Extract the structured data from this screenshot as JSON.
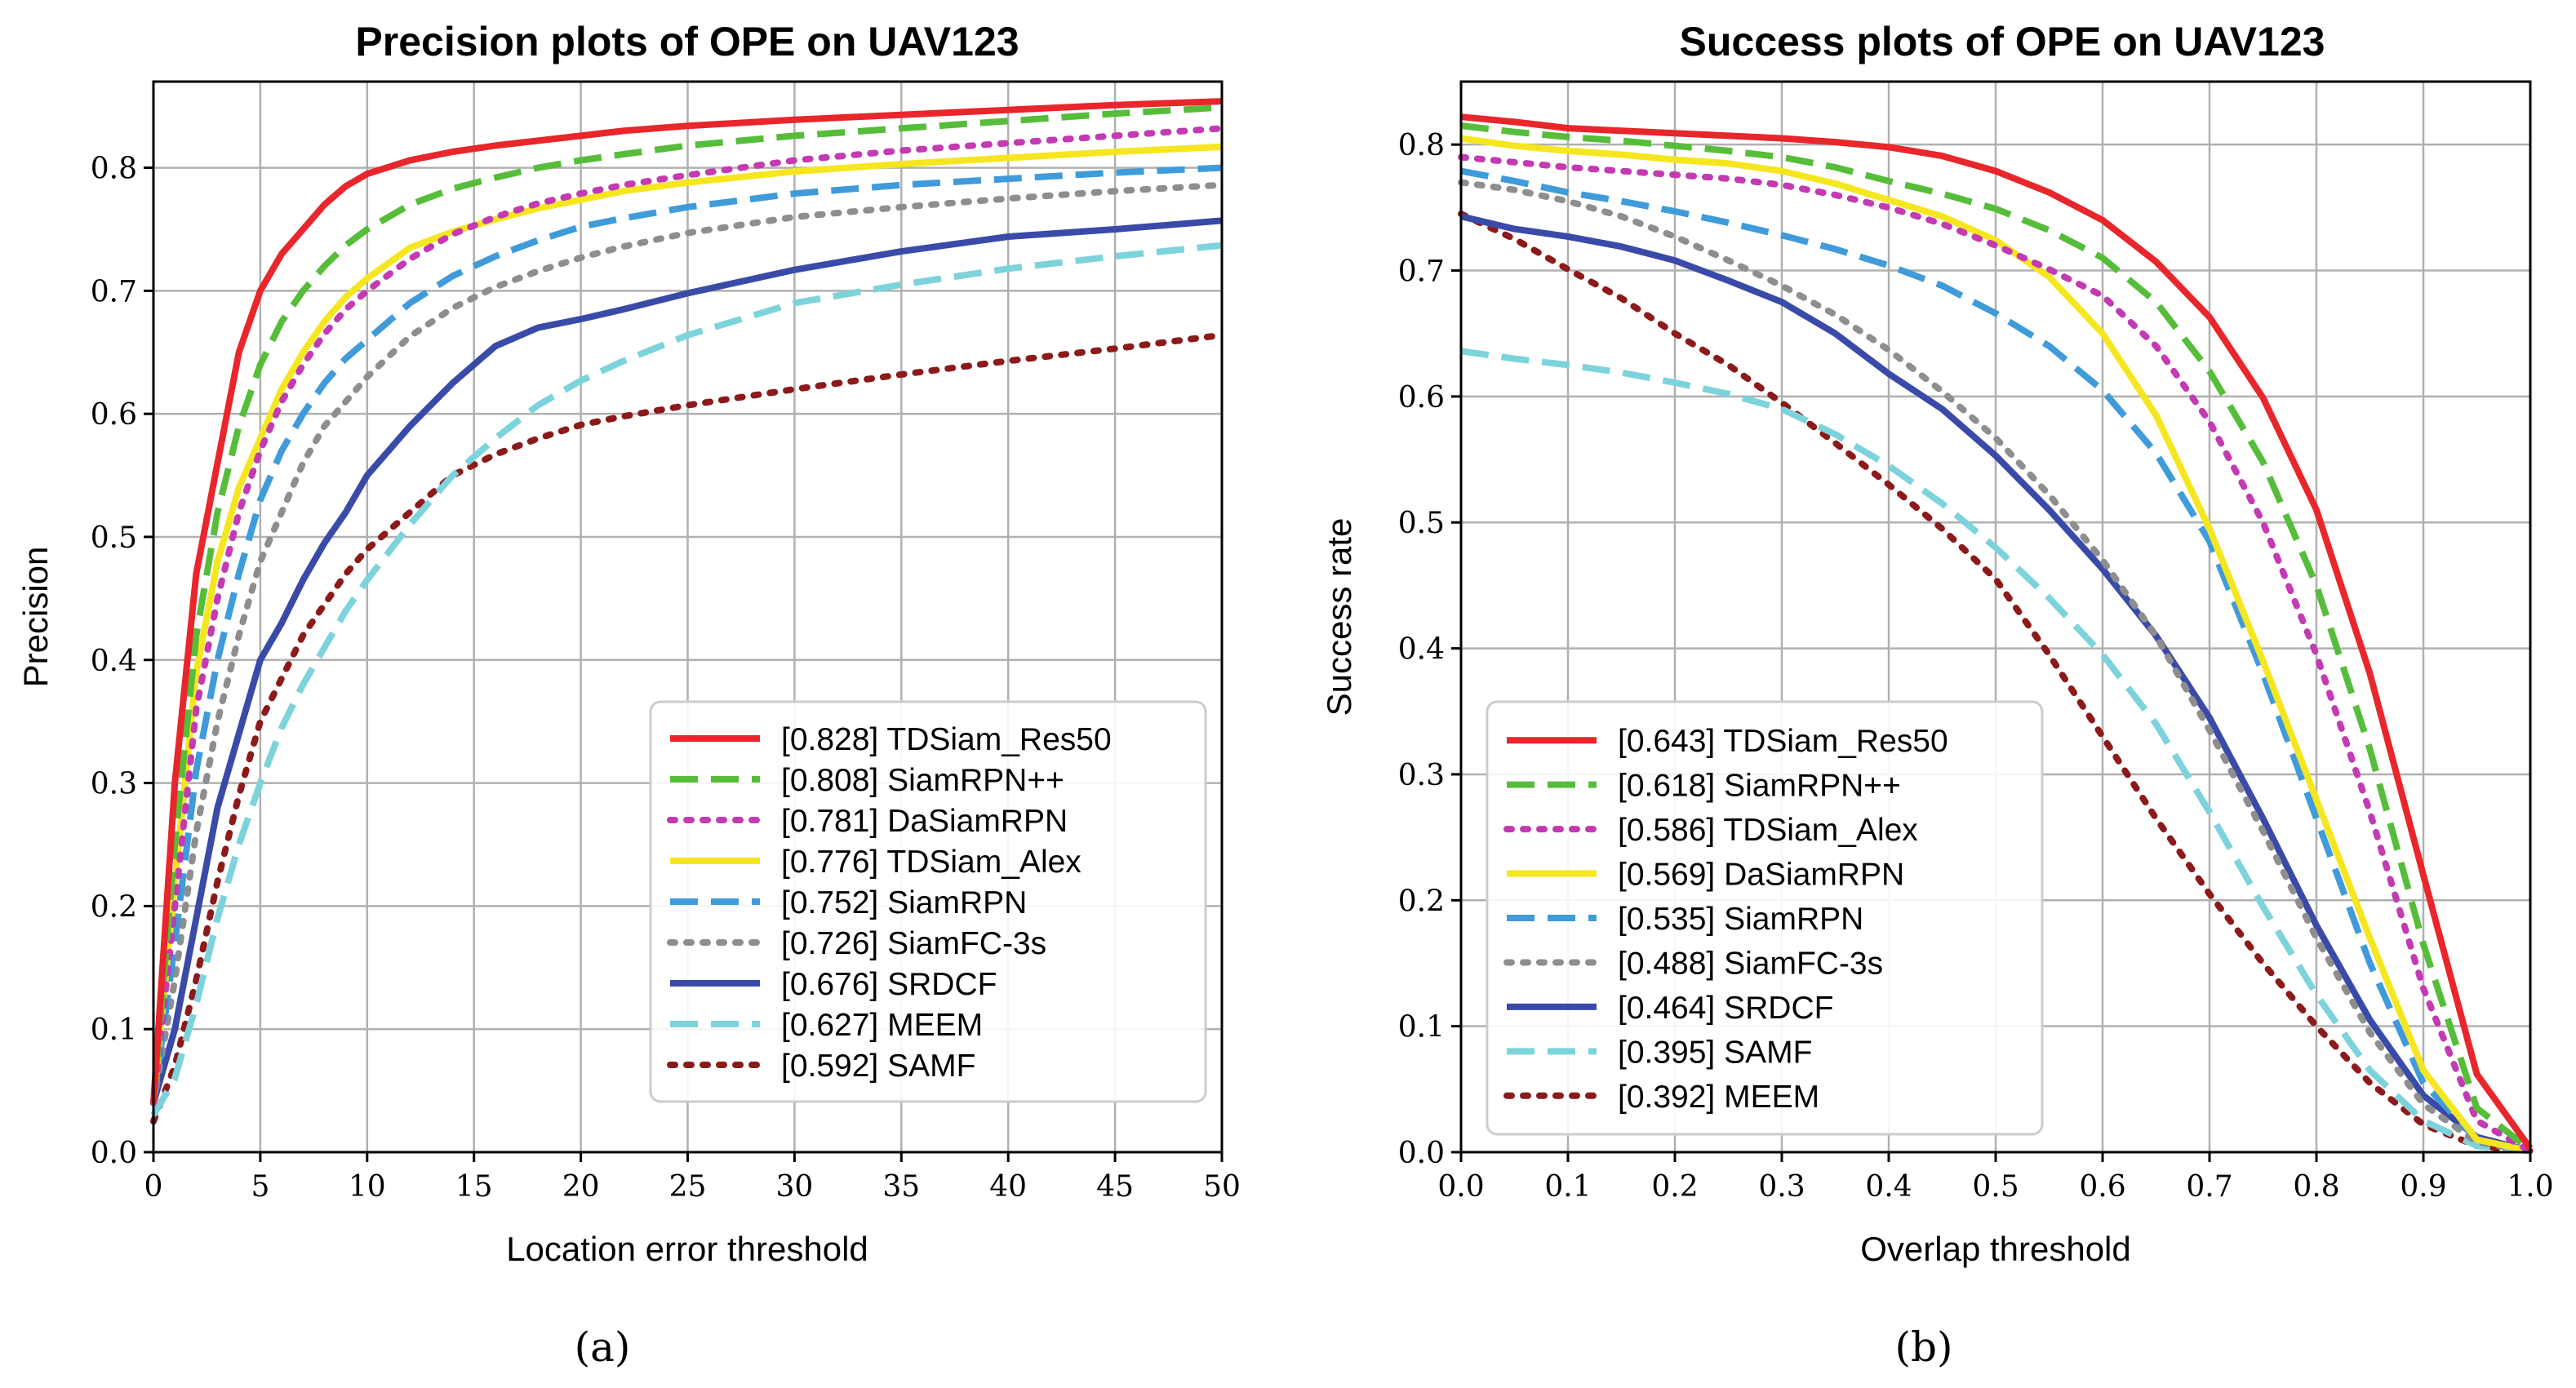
{
  "chart_data": [
    {
      "type": "line",
      "title": "Precision plots of OPE on UAV123",
      "xlabel": "Location error threshold",
      "ylabel": "Precision",
      "xlim": [
        0,
        50
      ],
      "ylim": [
        0,
        0.87
      ],
      "xticks": [
        0,
        5,
        10,
        15,
        20,
        25,
        30,
        35,
        40,
        45,
        50
      ],
      "yticks": [
        0.0,
        0.1,
        0.2,
        0.3,
        0.4,
        0.5,
        0.6,
        0.7,
        0.8
      ],
      "grid": true,
      "legend_position": "lower-right",
      "caption": "(a)",
      "x": [
        0,
        1,
        2,
        3,
        4,
        5,
        6,
        7,
        8,
        9,
        10,
        12,
        14,
        16,
        18,
        20,
        22,
        25,
        30,
        35,
        40,
        45,
        50
      ],
      "series": [
        {
          "name": "[0.828] TDSiam_Res50",
          "color": "#e8262b",
          "dash": "solid",
          "values": [
            0.04,
            0.3,
            0.47,
            0.56,
            0.65,
            0.7,
            0.73,
            0.75,
            0.77,
            0.785,
            0.795,
            0.806,
            0.813,
            0.818,
            0.822,
            0.826,
            0.83,
            0.834,
            0.839,
            0.843,
            0.847,
            0.851,
            0.854
          ]
        },
        {
          "name": "[0.808] SiamRPN++",
          "color": "#56bd3a",
          "dash": "dashed",
          "values": [
            0.04,
            0.25,
            0.42,
            0.52,
            0.59,
            0.64,
            0.675,
            0.7,
            0.72,
            0.737,
            0.75,
            0.77,
            0.783,
            0.792,
            0.8,
            0.806,
            0.811,
            0.818,
            0.826,
            0.832,
            0.838,
            0.844,
            0.849
          ]
        },
        {
          "name": "[0.781] DaSiamRPN",
          "color": "#c33ab3",
          "dash": "dotted",
          "values": [
            0.04,
            0.2,
            0.36,
            0.45,
            0.52,
            0.57,
            0.61,
            0.64,
            0.665,
            0.685,
            0.7,
            0.726,
            0.746,
            0.76,
            0.771,
            0.779,
            0.786,
            0.794,
            0.806,
            0.814,
            0.82,
            0.826,
            0.832
          ]
        },
        {
          "name": "[0.776] TDSiam_Alex",
          "color": "#f5e61f",
          "dash": "solid",
          "values": [
            0.04,
            0.22,
            0.39,
            0.48,
            0.54,
            0.58,
            0.62,
            0.65,
            0.675,
            0.695,
            0.71,
            0.735,
            0.748,
            0.758,
            0.767,
            0.774,
            0.781,
            0.788,
            0.797,
            0.803,
            0.808,
            0.813,
            0.817
          ]
        },
        {
          "name": "[0.752] SiamRPN",
          "color": "#3f9bda",
          "dash": "dashed",
          "values": [
            0.04,
            0.17,
            0.31,
            0.4,
            0.47,
            0.53,
            0.57,
            0.6,
            0.625,
            0.645,
            0.66,
            0.69,
            0.712,
            0.728,
            0.741,
            0.752,
            0.759,
            0.768,
            0.779,
            0.786,
            0.791,
            0.796,
            0.8
          ]
        },
        {
          "name": "[0.726] SiamFC-3s",
          "color": "#8e8e8e",
          "dash": "dotted",
          "values": [
            0.04,
            0.14,
            0.26,
            0.35,
            0.42,
            0.48,
            0.52,
            0.56,
            0.59,
            0.61,
            0.63,
            0.663,
            0.686,
            0.703,
            0.716,
            0.727,
            0.736,
            0.747,
            0.76,
            0.768,
            0.775,
            0.781,
            0.786
          ]
        },
        {
          "name": "[0.676] SRDCF",
          "color": "#3a4aa8",
          "dash": "solid",
          "values": [
            0.04,
            0.1,
            0.19,
            0.28,
            0.34,
            0.4,
            0.43,
            0.465,
            0.495,
            0.52,
            0.55,
            0.59,
            0.625,
            0.655,
            0.67,
            0.677,
            0.685,
            0.698,
            0.717,
            0.732,
            0.744,
            0.75,
            0.757
          ]
        },
        {
          "name": "[0.627] MEEM",
          "color": "#7dd3dc",
          "dash": "dashed",
          "values": [
            0.03,
            0.06,
            0.12,
            0.19,
            0.25,
            0.3,
            0.345,
            0.38,
            0.41,
            0.44,
            0.465,
            0.51,
            0.55,
            0.58,
            0.607,
            0.627,
            0.643,
            0.664,
            0.69,
            0.705,
            0.718,
            0.728,
            0.737
          ]
        },
        {
          "name": "[0.592] SAMF",
          "color": "#8c1a1a",
          "dash": "dotted",
          "values": [
            0.025,
            0.07,
            0.14,
            0.22,
            0.29,
            0.35,
            0.385,
            0.42,
            0.445,
            0.47,
            0.49,
            0.52,
            0.55,
            0.567,
            0.58,
            0.591,
            0.598,
            0.607,
            0.62,
            0.632,
            0.643,
            0.653,
            0.664
          ]
        }
      ]
    },
    {
      "type": "line",
      "title": "Success plots of OPE on UAV123",
      "xlabel": "Overlap threshold",
      "ylabel": "Success rate",
      "xlim": [
        0,
        1
      ],
      "ylim": [
        0,
        0.85
      ],
      "xticks": [
        0.0,
        0.1,
        0.2,
        0.3,
        0.4,
        0.5,
        0.6,
        0.7,
        0.8,
        0.9,
        1.0
      ],
      "yticks": [
        0.0,
        0.1,
        0.2,
        0.3,
        0.4,
        0.5,
        0.6,
        0.7,
        0.8
      ],
      "grid": true,
      "legend_position": "lower-left",
      "caption": "(b)",
      "x": [
        0,
        0.05,
        0.1,
        0.15,
        0.2,
        0.25,
        0.3,
        0.35,
        0.4,
        0.45,
        0.5,
        0.55,
        0.6,
        0.65,
        0.7,
        0.75,
        0.8,
        0.85,
        0.9,
        0.95,
        1.0
      ],
      "series": [
        {
          "name": "[0.643] TDSiam_Res50",
          "color": "#e8262b",
          "dash": "solid",
          "values": [
            0.822,
            0.818,
            0.813,
            0.811,
            0.809,
            0.807,
            0.805,
            0.802,
            0.798,
            0.791,
            0.779,
            0.762,
            0.74,
            0.707,
            0.663,
            0.599,
            0.51,
            0.38,
            0.22,
            0.062,
            0.003
          ]
        },
        {
          "name": "[0.618] SiamRPN++",
          "color": "#56bd3a",
          "dash": "dashed",
          "values": [
            0.815,
            0.81,
            0.806,
            0.803,
            0.799,
            0.795,
            0.79,
            0.782,
            0.771,
            0.761,
            0.749,
            0.732,
            0.71,
            0.675,
            0.62,
            0.548,
            0.45,
            0.32,
            0.165,
            0.035,
            0.002
          ]
        },
        {
          "name": "[0.586] TDSiam_Alex",
          "color": "#c33ab3",
          "dash": "dotted",
          "values": [
            0.79,
            0.786,
            0.782,
            0.779,
            0.776,
            0.773,
            0.768,
            0.76,
            0.75,
            0.737,
            0.72,
            0.701,
            0.68,
            0.64,
            0.58,
            0.5,
            0.395,
            0.27,
            0.13,
            0.025,
            0.001
          ]
        },
        {
          "name": "[0.569] DaSiamRPN",
          "color": "#f5e61f",
          "dash": "solid",
          "values": [
            0.805,
            0.799,
            0.795,
            0.792,
            0.788,
            0.785,
            0.779,
            0.769,
            0.756,
            0.743,
            0.724,
            0.695,
            0.65,
            0.585,
            0.495,
            0.39,
            0.28,
            0.17,
            0.065,
            0.01,
            0.001
          ]
        },
        {
          "name": "[0.535] SiamRPN",
          "color": "#3f9bda",
          "dash": "dashed",
          "values": [
            0.779,
            0.771,
            0.762,
            0.755,
            0.747,
            0.738,
            0.728,
            0.717,
            0.704,
            0.688,
            0.666,
            0.64,
            0.605,
            0.555,
            0.485,
            0.38,
            0.265,
            0.15,
            0.055,
            0.01,
            0.001
          ]
        },
        {
          "name": "[0.488] SiamFC-3s",
          "color": "#8e8e8e",
          "dash": "dotted",
          "values": [
            0.77,
            0.764,
            0.755,
            0.743,
            0.727,
            0.708,
            0.688,
            0.665,
            0.637,
            0.604,
            0.567,
            0.522,
            0.47,
            0.41,
            0.335,
            0.255,
            0.17,
            0.095,
            0.038,
            0.008,
            0.001
          ]
        },
        {
          "name": "[0.464] SRDCF",
          "color": "#3a4aa8",
          "dash": "solid",
          "values": [
            0.743,
            0.733,
            0.727,
            0.719,
            0.708,
            0.692,
            0.675,
            0.65,
            0.618,
            0.59,
            0.553,
            0.51,
            0.463,
            0.41,
            0.345,
            0.265,
            0.18,
            0.105,
            0.045,
            0.012,
            0.001
          ]
        },
        {
          "name": "[0.395] SAMF",
          "color": "#7dd3dc",
          "dash": "dashed",
          "values": [
            0.636,
            0.63,
            0.625,
            0.619,
            0.611,
            0.602,
            0.59,
            0.57,
            0.545,
            0.515,
            0.48,
            0.44,
            0.395,
            0.34,
            0.27,
            0.195,
            0.125,
            0.065,
            0.025,
            0.005,
            0.001
          ]
        },
        {
          "name": "[0.392] MEEM",
          "color": "#8c1a1a",
          "dash": "dotted",
          "values": [
            0.745,
            0.725,
            0.701,
            0.678,
            0.65,
            0.625,
            0.595,
            0.563,
            0.53,
            0.495,
            0.455,
            0.395,
            0.33,
            0.265,
            0.205,
            0.15,
            0.1,
            0.055,
            0.022,
            0.005,
            0.001
          ]
        }
      ]
    }
  ]
}
